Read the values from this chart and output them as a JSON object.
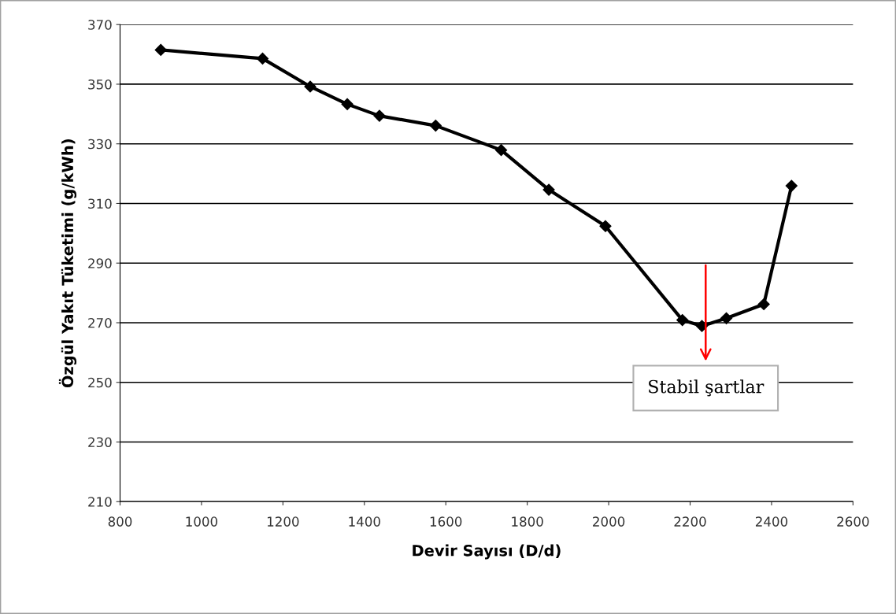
{
  "chart_data": {
    "type": "line",
    "xlabel": "Devir Sayısı (D/d)",
    "ylabel": "Özgül Yakıt Tüketimi (g/kWh)",
    "x": [
      900,
      1150,
      1267,
      1358,
      1437,
      1575,
      1736,
      1853,
      1992,
      2181,
      2229,
      2289,
      2381,
      2449
    ],
    "series": [
      {
        "color": "#000000",
        "values": [
          361.5,
          358.6,
          349.2,
          343.3,
          339.4,
          336.1,
          327.9,
          314.6,
          302.4,
          270.9,
          268.9,
          271.5,
          276.2,
          315.9
        ]
      }
    ],
    "xlim": [
      800,
      2600
    ],
    "xticks": [
      800,
      1000,
      1200,
      1400,
      1600,
      1800,
      2000,
      2200,
      2400,
      2600
    ],
    "ylim": [
      210,
      370
    ],
    "yticks": [
      210,
      230,
      250,
      270,
      290,
      310,
      330,
      350,
      370
    ],
    "grid": "y",
    "marker": "diamond",
    "line_style": "solid",
    "legend": false,
    "annotations": [
      "Stabil şartlar"
    ]
  }
}
